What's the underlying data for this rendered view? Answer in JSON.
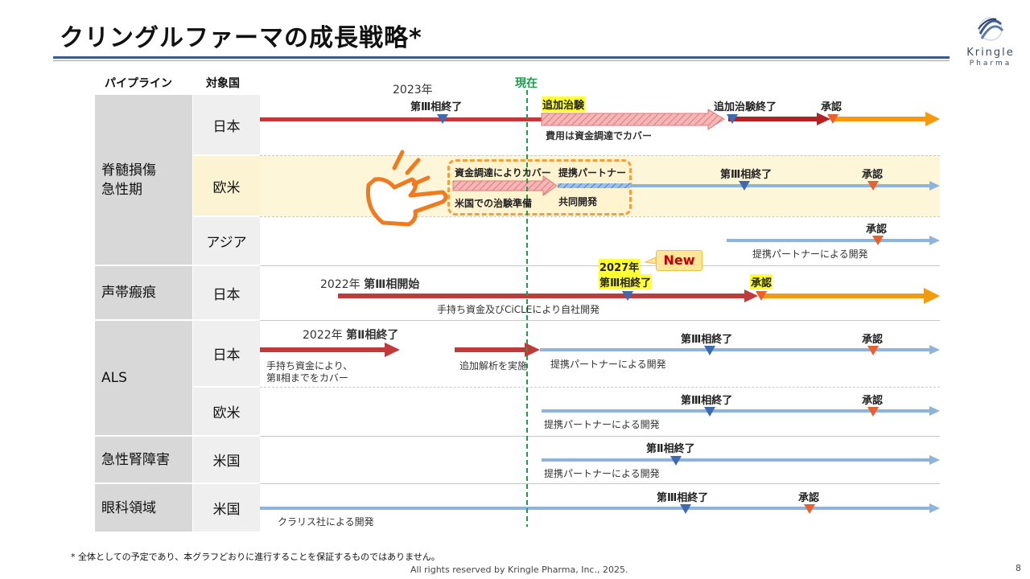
{
  "slide": {
    "title": "クリングルファーマの成長戦略*",
    "page_number": "8"
  },
  "logo": {
    "name_line1": "Kringle",
    "name_line2": "Pharma"
  },
  "headers": {
    "pipeline": "パイプライン",
    "target_country": "対象国"
  },
  "pipelines": [
    {
      "name": "脊髄損傷\n急性期",
      "countries": [
        "日本",
        "欧米",
        "アジア"
      ]
    },
    {
      "name": "声帯瘢痕",
      "countries": [
        "日本"
      ]
    },
    {
      "name": "ALS",
      "countries": [
        "日本",
        "欧米"
      ]
    },
    {
      "name": "急性腎障害",
      "countries": [
        "米国"
      ]
    },
    {
      "name": "眼科領域",
      "countries": [
        "米国"
      ]
    }
  ],
  "current_marker": {
    "label": "現在"
  },
  "rows": {
    "sci_japan": {
      "year": "2023年",
      "phase3_end": "第Ⅲ相終了",
      "additional_trial": "追加治験",
      "additional_trial_end": "追加治験終了",
      "approval": "承認",
      "cost_note": "費用は資金調達でカバー"
    },
    "sci_west": {
      "callout_funding": "資金調達によりカバー",
      "callout_us_prep": "米国での治験準備",
      "partner": "提携パートナー",
      "codev": "共同開発",
      "phase3_end": "第Ⅲ相終了",
      "approval": "承認"
    },
    "sci_asia": {
      "approval": "承認",
      "partner_dev": "提携パートナーによる開発"
    },
    "vocal_japan": {
      "year": "2022年",
      "phase3_start": "第Ⅲ相開始",
      "year2": "2027年",
      "phase3_end": "第Ⅲ相終了",
      "new_badge": "New",
      "approval": "承認",
      "self_dev": "手持ち資金及びCiCLEにより自社開発"
    },
    "als_japan": {
      "year": "2022年",
      "phase2_end": "第Ⅱ相終了",
      "funds_note_1": "手持ち資金により、",
      "funds_note_2": "第Ⅱ相までをカバー",
      "extra_analysis": "追加解析を実施",
      "partner_dev": "提携パートナーによる開発",
      "phase3_end": "第Ⅲ相終了",
      "approval": "承認"
    },
    "als_west": {
      "phase3_end": "第Ⅲ相終了",
      "approval": "承認",
      "partner_dev": "提携パートナーによる開発"
    },
    "aki_us": {
      "phase2_end": "第Ⅱ相終了",
      "partner_dev": "提携パートナーによる開発"
    },
    "eye_us": {
      "phase3_end": "第Ⅲ相終了",
      "approval": "承認",
      "claris_dev": "クラリス社による開発"
    }
  },
  "colors": {
    "red_bar": "#c0393b",
    "orange_bar": "#f59a0e",
    "blue_bar": "#8fb4dc",
    "blue_marker": "#3e6ab0",
    "orange_marker": "#e8602c",
    "current_line": "#1aa04a"
  },
  "footer": {
    "disclaimer": "* 全体としての予定であり、本グラフどおりに進行することを保証するものではありません。",
    "copyright": "All rights reserved by Kringle Pharma, Inc., 2025."
  }
}
